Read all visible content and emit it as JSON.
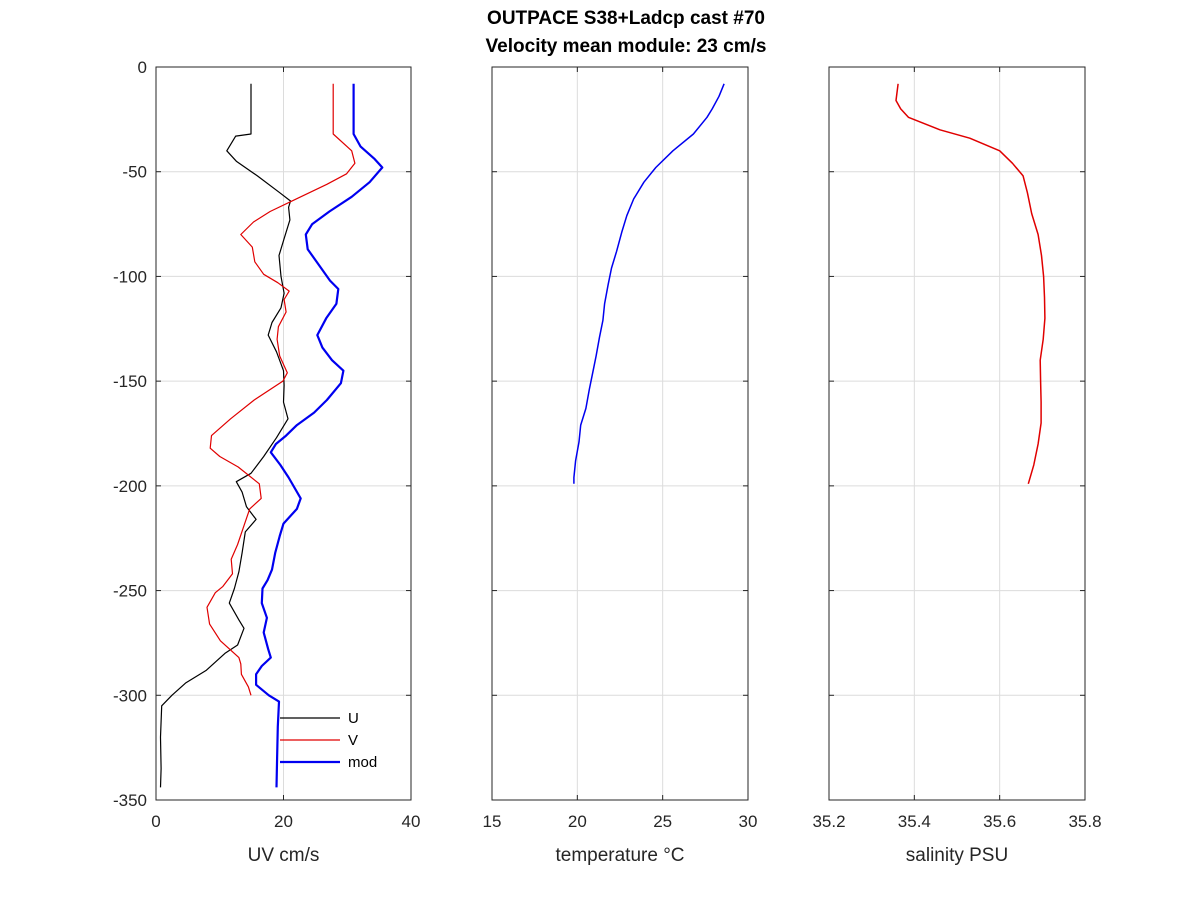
{
  "figure": {
    "title_line1": "OUTPACE S38+Ladcp cast #70",
    "title_line2": "Velocity mean module:  23 cm/s"
  },
  "chart_data": [
    {
      "type": "line",
      "xlabel": "UV cm/s",
      "ylabel": "",
      "xlim": [
        0,
        40
      ],
      "ylim": [
        -350,
        0
      ],
      "xticks": [
        "0",
        "20",
        "40"
      ],
      "yticks": [
        "0",
        "-50",
        "-100",
        "-150",
        "-200",
        "-250",
        "-300",
        "-350"
      ],
      "grid": true,
      "legend": {
        "placement": "bottom-right",
        "entries": [
          "U",
          "V",
          "mod"
        ]
      },
      "series": [
        {
          "name": "U",
          "color": "#000000",
          "points": [
            [
              14.9,
              -8
            ],
            [
              14.9,
              -32
            ],
            [
              12.5,
              -33
            ],
            [
              11.1,
              -40
            ],
            [
              12.6,
              -45
            ],
            [
              15.9,
              -52
            ],
            [
              19.4,
              -60
            ],
            [
              21.1,
              -64
            ],
            [
              20.8,
              -67
            ],
            [
              21.0,
              -73
            ],
            [
              20.1,
              -82
            ],
            [
              19.3,
              -90
            ],
            [
              19.6,
              -100
            ],
            [
              20.1,
              -108
            ],
            [
              19.6,
              -115
            ],
            [
              18.2,
              -122
            ],
            [
              17.6,
              -128
            ],
            [
              18.9,
              -136
            ],
            [
              20.0,
              -145
            ],
            [
              20.1,
              -152
            ],
            [
              20.0,
              -160
            ],
            [
              20.7,
              -168
            ],
            [
              18.9,
              -177
            ],
            [
              16.9,
              -186
            ],
            [
              14.9,
              -194
            ],
            [
              12.6,
              -198
            ],
            [
              13.5,
              -203
            ],
            [
              14.2,
              -210
            ],
            [
              15.7,
              -216
            ],
            [
              14.0,
              -222
            ],
            [
              13.5,
              -232
            ],
            [
              13.0,
              -241
            ],
            [
              12.3,
              -249
            ],
            [
              11.5,
              -256
            ],
            [
              13.0,
              -264
            ],
            [
              13.8,
              -268
            ],
            [
              12.8,
              -276
            ],
            [
              10.8,
              -280
            ],
            [
              7.9,
              -288
            ],
            [
              4.7,
              -294
            ],
            [
              2.5,
              -300
            ],
            [
              0.9,
              -305
            ],
            [
              0.7,
              -320
            ],
            [
              0.8,
              -335
            ],
            [
              0.7,
              -344
            ]
          ]
        },
        {
          "name": "V",
          "color": "#e00000",
          "points": [
            [
              27.8,
              -8
            ],
            [
              27.8,
              -32
            ],
            [
              30.7,
              -40
            ],
            [
              31.2,
              -46
            ],
            [
              29.9,
              -51
            ],
            [
              26.8,
              -56
            ],
            [
              22.0,
              -63
            ],
            [
              17.9,
              -69
            ],
            [
              15.3,
              -74
            ],
            [
              13.3,
              -80
            ],
            [
              15.1,
              -86
            ],
            [
              15.5,
              -93
            ],
            [
              16.9,
              -99
            ],
            [
              19.1,
              -103
            ],
            [
              20.9,
              -107
            ],
            [
              20.1,
              -111
            ],
            [
              20.4,
              -117
            ],
            [
              19.2,
              -124
            ],
            [
              19.0,
              -130
            ],
            [
              19.4,
              -138
            ],
            [
              20.6,
              -146
            ],
            [
              19.9,
              -150
            ],
            [
              15.4,
              -159
            ],
            [
              11.7,
              -168
            ],
            [
              8.7,
              -176
            ],
            [
              8.5,
              -182
            ],
            [
              10.0,
              -186
            ],
            [
              12.9,
              -191
            ],
            [
              16.2,
              -199
            ],
            [
              16.5,
              -206
            ],
            [
              14.7,
              -211
            ],
            [
              13.7,
              -220
            ],
            [
              12.8,
              -228
            ],
            [
              11.8,
              -235
            ],
            [
              12.0,
              -242
            ],
            [
              10.5,
              -248
            ],
            [
              9.3,
              -251
            ],
            [
              8.0,
              -258
            ],
            [
              8.4,
              -266
            ],
            [
              10.1,
              -274
            ],
            [
              13.0,
              -282
            ],
            [
              13.3,
              -285
            ],
            [
              13.4,
              -290
            ],
            [
              14.5,
              -296
            ],
            [
              14.9,
              -300
            ]
          ]
        },
        {
          "name": "mod",
          "color": "#0000f0",
          "points": [
            [
              31.0,
              -8
            ],
            [
              31.0,
              -32
            ],
            [
              32.1,
              -38
            ],
            [
              34.3,
              -44
            ],
            [
              35.5,
              -48
            ],
            [
              33.5,
              -55
            ],
            [
              30.7,
              -62
            ],
            [
              27.2,
              -69
            ],
            [
              24.5,
              -75
            ],
            [
              23.5,
              -80
            ],
            [
              23.8,
              -87
            ],
            [
              25.2,
              -93
            ],
            [
              27.3,
              -102
            ],
            [
              28.6,
              -106
            ],
            [
              28.3,
              -113
            ],
            [
              26.7,
              -120
            ],
            [
              25.3,
              -128
            ],
            [
              26.1,
              -134
            ],
            [
              27.6,
              -140
            ],
            [
              29.4,
              -145
            ],
            [
              29.0,
              -151
            ],
            [
              26.8,
              -159
            ],
            [
              24.8,
              -165
            ],
            [
              22.1,
              -171
            ],
            [
              20.4,
              -176
            ],
            [
              18.8,
              -180
            ],
            [
              18.0,
              -184
            ],
            [
              19.5,
              -190
            ],
            [
              20.8,
              -196
            ],
            [
              22.7,
              -206
            ],
            [
              22.1,
              -211
            ],
            [
              20.0,
              -218
            ],
            [
              19.4,
              -224
            ],
            [
              18.7,
              -232
            ],
            [
              18.2,
              -240
            ],
            [
              17.5,
              -245
            ],
            [
              16.7,
              -249
            ],
            [
              16.6,
              -256
            ],
            [
              17.4,
              -263
            ],
            [
              16.9,
              -270
            ],
            [
              17.6,
              -278
            ],
            [
              18.0,
              -282
            ],
            [
              16.6,
              -286
            ],
            [
              15.7,
              -290
            ],
            [
              15.7,
              -295
            ],
            [
              17.7,
              -300
            ],
            [
              19.3,
              -303
            ],
            [
              19.1,
              -315
            ],
            [
              19.0,
              -330
            ],
            [
              18.9,
              -344
            ]
          ]
        }
      ]
    },
    {
      "type": "line",
      "xlabel": "temperature °C",
      "ylabel": "",
      "xlim": [
        15,
        30
      ],
      "ylim": [
        -350,
        0
      ],
      "xticks": [
        "15",
        "20",
        "25",
        "30"
      ],
      "yticks": [],
      "grid": true,
      "series": [
        {
          "color": "#0000f0",
          "points": [
            [
              28.6,
              -8
            ],
            [
              28.3,
              -14
            ],
            [
              27.9,
              -20
            ],
            [
              27.6,
              -24
            ],
            [
              26.8,
              -32
            ],
            [
              25.6,
              -40
            ],
            [
              24.6,
              -48
            ],
            [
              23.9,
              -55
            ],
            [
              23.3,
              -63
            ],
            [
              22.9,
              -71
            ],
            [
              22.6,
              -79
            ],
            [
              22.3,
              -88
            ],
            [
              22.0,
              -96
            ],
            [
              21.8,
              -104
            ],
            [
              21.6,
              -113
            ],
            [
              21.5,
              -121
            ],
            [
              21.3,
              -129
            ],
            [
              21.1,
              -138
            ],
            [
              20.9,
              -146
            ],
            [
              20.7,
              -154
            ],
            [
              20.5,
              -163
            ],
            [
              20.2,
              -171
            ],
            [
              20.1,
              -179
            ],
            [
              19.9,
              -188
            ],
            [
              19.8,
              -196
            ],
            [
              19.8,
              -199
            ]
          ]
        }
      ]
    },
    {
      "type": "line",
      "xlabel": "salinity PSU",
      "ylabel": "",
      "xlim": [
        35.2,
        35.8
      ],
      "ylim": [
        -350,
        0
      ],
      "xticks": [
        "35.2",
        "35.4",
        "35.6",
        "35.8"
      ],
      "yticks": [],
      "grid": true,
      "series": [
        {
          "color": "#e00000",
          "points": [
            [
              35.362,
              -8
            ],
            [
              35.357,
              -16
            ],
            [
              35.368,
              -20
            ],
            [
              35.386,
              -24
            ],
            [
              35.46,
              -30
            ],
            [
              35.53,
              -34
            ],
            [
              35.6,
              -40
            ],
            [
              35.63,
              -46
            ],
            [
              35.655,
              -52
            ],
            [
              35.665,
              -60
            ],
            [
              35.675,
              -70
            ],
            [
              35.69,
              -80
            ],
            [
              35.698,
              -90
            ],
            [
              35.703,
              -100
            ],
            [
              35.705,
              -110
            ],
            [
              35.706,
              -120
            ],
            [
              35.702,
              -130
            ],
            [
              35.695,
              -140
            ],
            [
              35.696,
              -150
            ],
            [
              35.697,
              -160
            ],
            [
              35.697,
              -170
            ],
            [
              35.69,
              -180
            ],
            [
              35.68,
              -190
            ],
            [
              35.667,
              -199
            ]
          ]
        }
      ]
    }
  ]
}
